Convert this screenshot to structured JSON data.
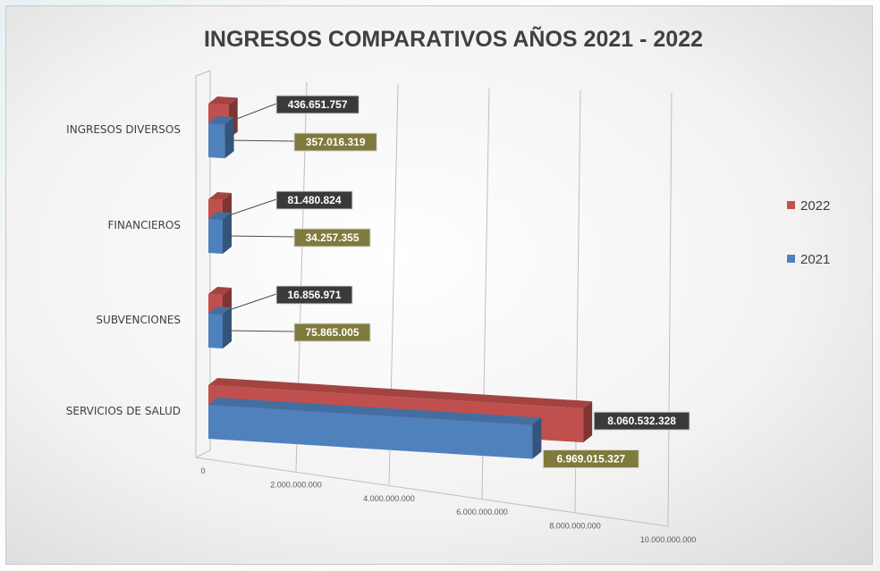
{
  "chart_data": {
    "type": "bar",
    "orientation": "horizontal",
    "style": "3d-perspective",
    "title": "INGRESOS COMPARATIVOS AÑOS 2021 - 2022",
    "categories": [
      "SERVICIOS DE SALUD",
      "SUBVENCIONES",
      "FINANCIEROS",
      "INGRESOS DIVERSOS"
    ],
    "series": [
      {
        "name": "2022",
        "color": "#c0504d",
        "label_bg": "#3a3a3a",
        "values": [
          8060532328,
          16856971,
          81480824,
          436651757
        ],
        "labels": [
          "8.060.532.328",
          "16.856.971",
          "81.480.824",
          "436.651.757"
        ]
      },
      {
        "name": "2021",
        "color": "#4f81bd",
        "label_bg": "#7f7a3d",
        "values": [
          6969015327,
          75865005,
          34257355,
          357016319
        ],
        "labels": [
          "6.969.015.327",
          "75.865.005",
          "34.257.355",
          "357.016.319"
        ]
      }
    ],
    "x_ticks": [
      "0",
      "2.000.000.000",
      "4.000.000.000",
      "6.000.000.000",
      "8.000.000.000",
      "10.000.000.000"
    ],
    "xlim": [
      0,
      10000000000
    ],
    "grid": true,
    "legend_position": "right"
  }
}
